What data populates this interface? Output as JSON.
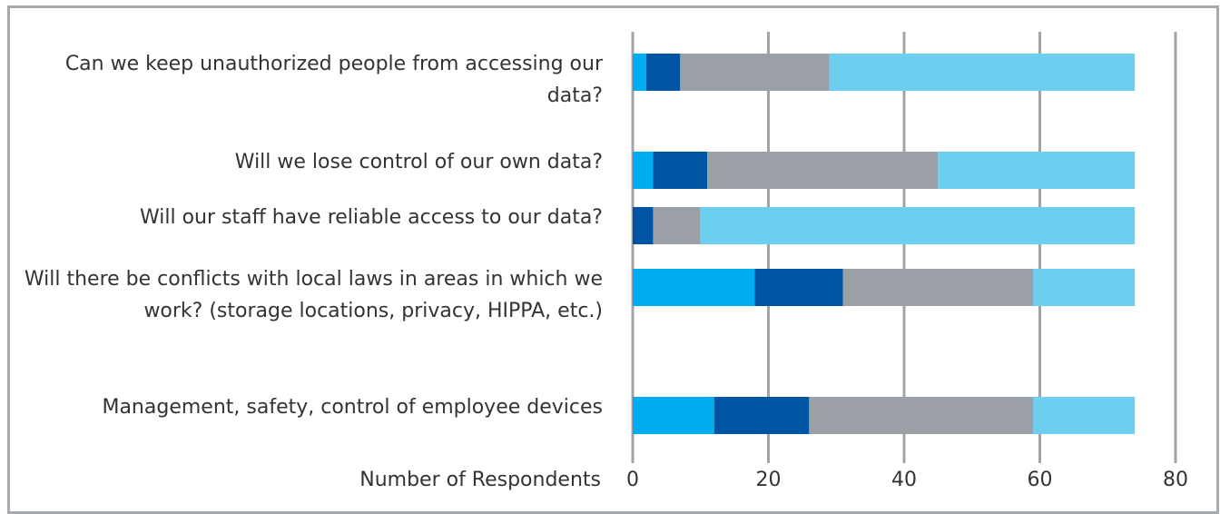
{
  "chart_data": {
    "type": "stacked-barh",
    "categories": [
      "Can we keep unauthorized people from accessing our data?",
      "Will we lose control of our own data?",
      "Will our staff have reliable access to our data?",
      "Will there be conflicts with local laws in areas in which we work? (storage locations, privacy, HIPPA, etc.)",
      "Management, safety, control of employee devices"
    ],
    "series": [
      {
        "color": "#00aeef",
        "values": [
          2,
          3,
          0,
          18,
          12
        ]
      },
      {
        "color": "#0054a4",
        "values": [
          5,
          8,
          3,
          13,
          14
        ]
      },
      {
        "color": "#9aa0a6",
        "values": [
          22,
          34,
          7,
          28,
          33
        ]
      },
      {
        "color": "#6dcff0",
        "values": [
          45,
          29,
          64,
          15,
          15
        ]
      }
    ],
    "x_label": "Number of Respondents",
    "xlim": [
      0,
      80
    ],
    "xticks": [
      0,
      20,
      40,
      60,
      80
    ],
    "grid": true,
    "grid_color": "#a0a4a8"
  }
}
